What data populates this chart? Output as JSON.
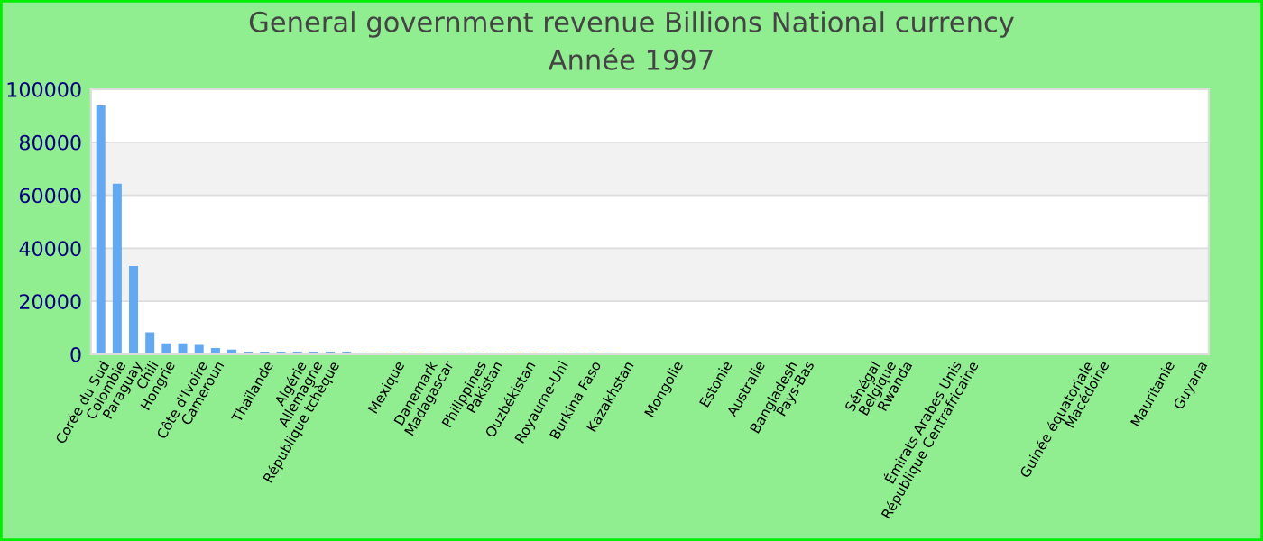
{
  "chart_data": {
    "type": "bar",
    "title": "General government revenue Billions National currency",
    "subtitle": "Année 1997",
    "categories": [
      "Corée du Sud",
      "Colombie",
      "Paraguay",
      "Chili",
      "Hongrie",
      null,
      "Côte d'Ivoire",
      "Cameroun",
      null,
      null,
      "Thaïlande",
      null,
      "Algérie",
      "Allemagne",
      "République tchèque",
      null,
      null,
      null,
      "Mexique",
      null,
      "Danemark",
      "Madagascar",
      null,
      "Philippines",
      "Pakistan",
      null,
      "Ouzbékistan",
      null,
      "Royaume-Uni",
      null,
      "Burkina Faso",
      null,
      "Kazakhstan",
      null,
      null,
      "Mongolie",
      null,
      null,
      "Estonie",
      null,
      "Australie",
      null,
      "Bangladesh",
      "Pays-Bas",
      null,
      null,
      null,
      "Sénégal",
      "Belgique",
      "Rwanda",
      null,
      null,
      "Émirats Arabes Unis",
      "République Centrafricaine",
      null,
      null,
      null,
      null,
      null,
      null,
      "Guinée équatoriale",
      "Macédoine",
      null,
      null,
      null,
      "Mauritanie",
      null,
      "Guyana"
    ],
    "values": [
      93900,
      64400,
      33300,
      8300,
      4200,
      4200,
      3600,
      2400,
      1800,
      1000,
      1000,
      1000,
      1000,
      1000,
      1000,
      1000,
      600,
      600,
      600,
      600,
      600,
      600,
      600,
      600,
      600,
      600,
      600,
      600,
      600,
      600,
      600,
      600,
      null,
      null,
      null,
      null,
      null,
      null,
      null,
      null,
      null,
      null,
      null,
      null,
      null,
      null,
      null,
      null,
      null,
      null,
      null,
      null,
      null,
      null,
      null,
      null,
      null,
      null,
      null,
      null,
      null,
      null,
      null,
      null,
      null,
      null,
      null,
      null
    ],
    "color": "#62a8f2",
    "ylim": [
      0,
      100000
    ],
    "yticks": [
      0,
      20000,
      40000,
      60000,
      80000,
      100000
    ],
    "grid": "y"
  }
}
